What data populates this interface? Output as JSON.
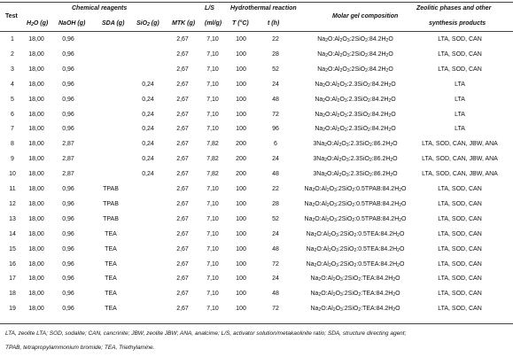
{
  "header": {
    "test": "Test",
    "chemical_reagents": "Chemical reagents",
    "ls": "L/S",
    "hydrothermal": "Hydrothermal reaction",
    "molar": "Molar gel composition",
    "zeolitic_1": "Zeolitic phases and other",
    "zeolitic_2": "synthesis products",
    "h2o": "H2O (g)",
    "naoh": "NaOH (g)",
    "sda": "SDA (g)",
    "sio2": "SiO2 (g)",
    "mtk": "MTK (g)",
    "ml_g": "(ml/g)",
    "temp": "T (°C)",
    "time": "t (h)"
  },
  "rows": [
    {
      "test": "1",
      "h2o": "18,00",
      "naoh": "0,96",
      "sda": "",
      "sio2": "",
      "mtk": "2,67",
      "ls": "7,10",
      "t": "100",
      "th": "22",
      "molar": "Na2O:Al2O3:2SiO2:84.2H2O",
      "products": "LTA, SOD, CAN"
    },
    {
      "test": "2",
      "h2o": "18,00",
      "naoh": "0,96",
      "sda": "",
      "sio2": "",
      "mtk": "2,67",
      "ls": "7,10",
      "t": "100",
      "th": "28",
      "molar": "Na2O:Al2O3:2SiO2:84.2H2O",
      "products": "LTA, SOD, CAN"
    },
    {
      "test": "3",
      "h2o": "18,00",
      "naoh": "0,96",
      "sda": "",
      "sio2": "",
      "mtk": "2,67",
      "ls": "7,10",
      "t": "100",
      "th": "52",
      "molar": "Na2O:Al2O3:2SiO2:84.2H2O",
      "products": "LTA, SOD, CAN"
    },
    {
      "test": "4",
      "h2o": "18,00",
      "naoh": "0,96",
      "sda": "",
      "sio2": "0,24",
      "mtk": "2,67",
      "ls": "7,10",
      "t": "100",
      "th": "24",
      "molar": "Na2O:Al2O3:2.3SiO2:84.2H2O",
      "products": "LTA"
    },
    {
      "test": "5",
      "h2o": "18,00",
      "naoh": "0,96",
      "sda": "",
      "sio2": "0,24",
      "mtk": "2,67",
      "ls": "7,10",
      "t": "100",
      "th": "48",
      "molar": "Na2O:Al2O3:2.3SiO2:84.2H2O",
      "products": "LTA"
    },
    {
      "test": "6",
      "h2o": "18,00",
      "naoh": "0,96",
      "sda": "",
      "sio2": "0,24",
      "mtk": "2,67",
      "ls": "7,10",
      "t": "100",
      "th": "72",
      "molar": "Na2O:Al2O3:2.3SiO2:84.2H2O",
      "products": "LTA"
    },
    {
      "test": "7",
      "h2o": "18,00",
      "naoh": "0,96",
      "sda": "",
      "sio2": "0,24",
      "mtk": "2,67",
      "ls": "7,10",
      "t": "100",
      "th": "96",
      "molar": "Na2O:Al2O3:2.3SiO2:84.2H2O",
      "products": "LTA"
    },
    {
      "test": "8",
      "h2o": "18,00",
      "naoh": "2,87",
      "sda": "",
      "sio2": "0,24",
      "mtk": "2,67",
      "ls": "7,82",
      "t": "200",
      "th": "6",
      "molar": "3Na2O:Al2O3:2.3SiO2:86.2H2O",
      "products": "LTA, SOD, CAN, JBW, ANA"
    },
    {
      "test": "9",
      "h2o": "18,00",
      "naoh": "2,87",
      "sda": "",
      "sio2": "0,24",
      "mtk": "2,67",
      "ls": "7,82",
      "t": "200",
      "th": "24",
      "molar": "3Na2O:Al2O3:2.3SiO2:86.2H2O",
      "products": "LTA, SOD, CAN, JBW, ANA"
    },
    {
      "test": "10",
      "h2o": "18,00",
      "naoh": "2,87",
      "sda": "",
      "sio2": "0,24",
      "mtk": "2,67",
      "ls": "7,82",
      "t": "200",
      "th": "48",
      "molar": "3Na2O:Al2O3:2.3SiO2:86.2H2O",
      "products": "LTA, SOD, CAN, JBW, ANA"
    },
    {
      "test": "11",
      "h2o": "18,00",
      "naoh": "0,96",
      "sda": "TPAB",
      "sio2": "",
      "mtk": "2,67",
      "ls": "7,10",
      "t": "100",
      "th": "22",
      "molar": "Na2O:Al2O3:2SiO2:0.5TPAB:84.2H2O",
      "products": "LTA, SOD, CAN"
    },
    {
      "test": "12",
      "h2o": "18,00",
      "naoh": "0,96",
      "sda": "TPAB",
      "sio2": "",
      "mtk": "2,67",
      "ls": "7,10",
      "t": "100",
      "th": "28",
      "molar": "Na2O:Al2O3:2SiO2:0.5TPAB:84.2H2O",
      "products": "LTA, SOD, CAN"
    },
    {
      "test": "13",
      "h2o": "18,00",
      "naoh": "0,96",
      "sda": "TPAB",
      "sio2": "",
      "mtk": "2,67",
      "ls": "7,10",
      "t": "100",
      "th": "52",
      "molar": "Na2O:Al2O3:2SiO2:0.5TPAB:84.2H2O",
      "products": "LTA, SOD, CAN"
    },
    {
      "test": "14",
      "h2o": "18,00",
      "naoh": "0,96",
      "sda": "TEA",
      "sio2": "",
      "mtk": "2,67",
      "ls": "7,10",
      "t": "100",
      "th": "24",
      "molar": "Na2O:Al2O3:2SiO2:0.5TEA:84.2H2O",
      "products": "LTA, SOD, CAN"
    },
    {
      "test": "15",
      "h2o": "18,00",
      "naoh": "0,96",
      "sda": "TEA",
      "sio2": "",
      "mtk": "2,67",
      "ls": "7,10",
      "t": "100",
      "th": "48",
      "molar": "Na2O:Al2O3:2SiO2:0.5TEA:84.2H2O",
      "products": "LTA, SOD, CAN"
    },
    {
      "test": "16",
      "h2o": "18,00",
      "naoh": "0,96",
      "sda": "TEA",
      "sio2": "",
      "mtk": "2,67",
      "ls": "7,10",
      "t": "100",
      "th": "72",
      "molar": "Na2O:Al2O3:2SiO2:0.5TEA:84.2H2O",
      "products": "LTA, SOD, CAN"
    },
    {
      "test": "17",
      "h2o": "18,00",
      "naoh": "0,96",
      "sda": "TEA",
      "sio2": "",
      "mtk": "2,67",
      "ls": "7,10",
      "t": "100",
      "th": "24",
      "molar": "Na2O:Al2O3:2SiO2:TEA:84.2H2O",
      "products": "LTA, SOD, CAN"
    },
    {
      "test": "18",
      "h2o": "18,00",
      "naoh": "0,96",
      "sda": "TEA",
      "sio2": "",
      "mtk": "2,67",
      "ls": "7,10",
      "t": "100",
      "th": "48",
      "molar": "Na2O:Al2O3:2SiO2:TEA:84.2H2O",
      "products": "LTA, SOD, CAN"
    },
    {
      "test": "19",
      "h2o": "18,00",
      "naoh": "0,96",
      "sda": "TEA",
      "sio2": "",
      "mtk": "2,67",
      "ls": "7,10",
      "t": "100",
      "th": "72",
      "molar": "Na2O:Al2O3:2SiO2:TEA:84.2H2O",
      "products": "LTA, SOD, CAN"
    }
  ],
  "footnote_1": "LTA, zeolite LTA; SOD, sodalite; CAN, cancrinite; JBW, zeolite JBW; ANA, analcime; L/S, activator solution/metakaolinite ratio; SDA, structure directing agent;",
  "footnote_2": "TPAB, tetrapropylammonium bromide; TEA, Triethylamine."
}
